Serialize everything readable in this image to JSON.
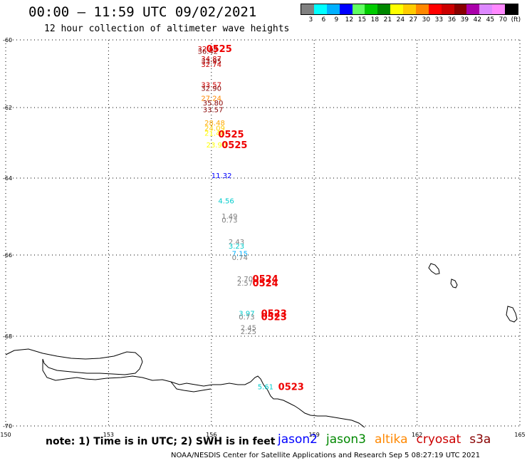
{
  "header": {
    "title": "00:00 – 11:59 UTC 09/02/2021",
    "subtitle": "12 hour collection of altimeter wave heights"
  },
  "legend": {
    "colors": [
      "#808080",
      "#00ffff",
      "#00b0ff",
      "#0000ff",
      "#60ff60",
      "#00cc00",
      "#008800",
      "#ffff00",
      "#ffcc00",
      "#ff8800",
      "#ff0000",
      "#cc0000",
      "#880000",
      "#aa00aa",
      "#dd88ff",
      "#ff88ff",
      "#000000"
    ],
    "labels": [
      "3",
      "6",
      "9",
      "12",
      "15",
      "18",
      "21",
      "24",
      "27",
      "30",
      "33",
      "36",
      "39",
      "42",
      "45",
      "70",
      "(ft)"
    ]
  },
  "axes": {
    "lon_ticks": [
      "150",
      "153",
      "156",
      "159",
      "162",
      "165"
    ],
    "lat_ticks": [
      "-60",
      "-62",
      "-64",
      "-66",
      "-68",
      "-70"
    ]
  },
  "observations": [
    {
      "text": "32.69",
      "lon": 155.6,
      "lat": -60.25,
      "color": "#cc0000"
    },
    {
      "text": "36.42",
      "lon": 155.6,
      "lat": -60.33,
      "color": "#880000"
    },
    {
      "text": "34.87",
      "lon": 155.7,
      "lat": -60.55,
      "color": "#cc0000"
    },
    {
      "text": "33.95",
      "lon": 155.7,
      "lat": -60.62,
      "color": "#880000"
    },
    {
      "text": "32.74",
      "lon": 155.7,
      "lat": -60.72,
      "color": "#cc0000"
    },
    {
      "text": "33.57",
      "lon": 155.7,
      "lat": -61.32,
      "color": "#cc0000"
    },
    {
      "text": "32.90",
      "lon": 155.7,
      "lat": -61.42,
      "color": "#880000"
    },
    {
      "text": "27.24",
      "lon": 155.7,
      "lat": -61.72,
      "color": "#ff8800"
    },
    {
      "text": "35.80",
      "lon": 155.75,
      "lat": -61.85,
      "color": "#880000"
    },
    {
      "text": "33.57",
      "lon": 155.75,
      "lat": -62.05,
      "color": "#880000"
    },
    {
      "text": "28.48",
      "lon": 155.8,
      "lat": -62.42,
      "color": "#ffaa00"
    },
    {
      "text": "24.09",
      "lon": 155.8,
      "lat": -62.58,
      "color": "#ffcc00"
    },
    {
      "text": "21.48",
      "lon": 155.8,
      "lat": -62.72,
      "color": "#ffff00"
    },
    {
      "text": "23.90",
      "lon": 155.85,
      "lat": -63.05,
      "color": "#ffff00"
    },
    {
      "text": "11.32",
      "lon": 156.0,
      "lat": -63.92,
      "color": "#0000ff"
    },
    {
      "text": "4.56",
      "lon": 156.2,
      "lat": -64.58,
      "color": "#00cccc"
    },
    {
      "text": "1.49",
      "lon": 156.3,
      "lat": -64.98,
      "color": "#808080"
    },
    {
      "text": "0.73",
      "lon": 156.3,
      "lat": -65.08,
      "color": "#808080"
    },
    {
      "text": "2.43",
      "lon": 156.5,
      "lat": -65.65,
      "color": "#808080"
    },
    {
      "text": "3.23",
      "lon": 156.5,
      "lat": -65.76,
      "color": "#00cccc"
    },
    {
      "text": "7.15",
      "lon": 156.6,
      "lat": -65.95,
      "color": "#00b0ff"
    },
    {
      "text": "0.74",
      "lon": 156.6,
      "lat": -66.05,
      "color": "#808080"
    },
    {
      "text": "2.70",
      "lon": 156.75,
      "lat": -66.58,
      "color": "#808080"
    },
    {
      "text": "2.57",
      "lon": 156.75,
      "lat": -66.68,
      "color": "#808080"
    },
    {
      "text": "3.97",
      "lon": 156.8,
      "lat": -67.43,
      "color": "#00cccc"
    },
    {
      "text": "0.73",
      "lon": 156.8,
      "lat": -67.52,
      "color": "#808080"
    },
    {
      "text": "2.45",
      "lon": 156.85,
      "lat": -67.78,
      "color": "#808080"
    },
    {
      "text": "2.25",
      "lon": 156.85,
      "lat": -67.88,
      "color": "#808080"
    },
    {
      "text": "5.61",
      "lon": 157.35,
      "lat": -69.12,
      "color": "#00cccc"
    }
  ],
  "time_labels": [
    {
      "text": "0525",
      "lon": 155.85,
      "lat": -60.25
    },
    {
      "text": "0525",
      "lon": 156.2,
      "lat": -62.75
    },
    {
      "text": "0525",
      "lon": 156.3,
      "lat": -63.05
    },
    {
      "text": "0524",
      "lon": 157.2,
      "lat": -66.58
    },
    {
      "text": "0524",
      "lon": 157.2,
      "lat": -66.68
    },
    {
      "text": "0523",
      "lon": 157.45,
      "lat": -67.43
    },
    {
      "text": "0523",
      "lon": 157.45,
      "lat": -67.52
    },
    {
      "text": "0523",
      "lon": 157.95,
      "lat": -69.12
    }
  ],
  "footer": {
    "note": "note: 1) Time is in UTC; 2) SWH is in feet",
    "satellites": [
      {
        "name": "jason2",
        "color": "#0000ff"
      },
      {
        "name": "jason3",
        "color": "#008800"
      },
      {
        "name": "altika",
        "color": "#ff8800"
      },
      {
        "name": "cryosat",
        "color": "#cc0000"
      },
      {
        "name": "s3a",
        "color": "#880000"
      }
    ],
    "credit": "NOAA/NESDIS Center for Satellite Applications and Research    Sep  5 08:27:19 UTC 2021"
  }
}
